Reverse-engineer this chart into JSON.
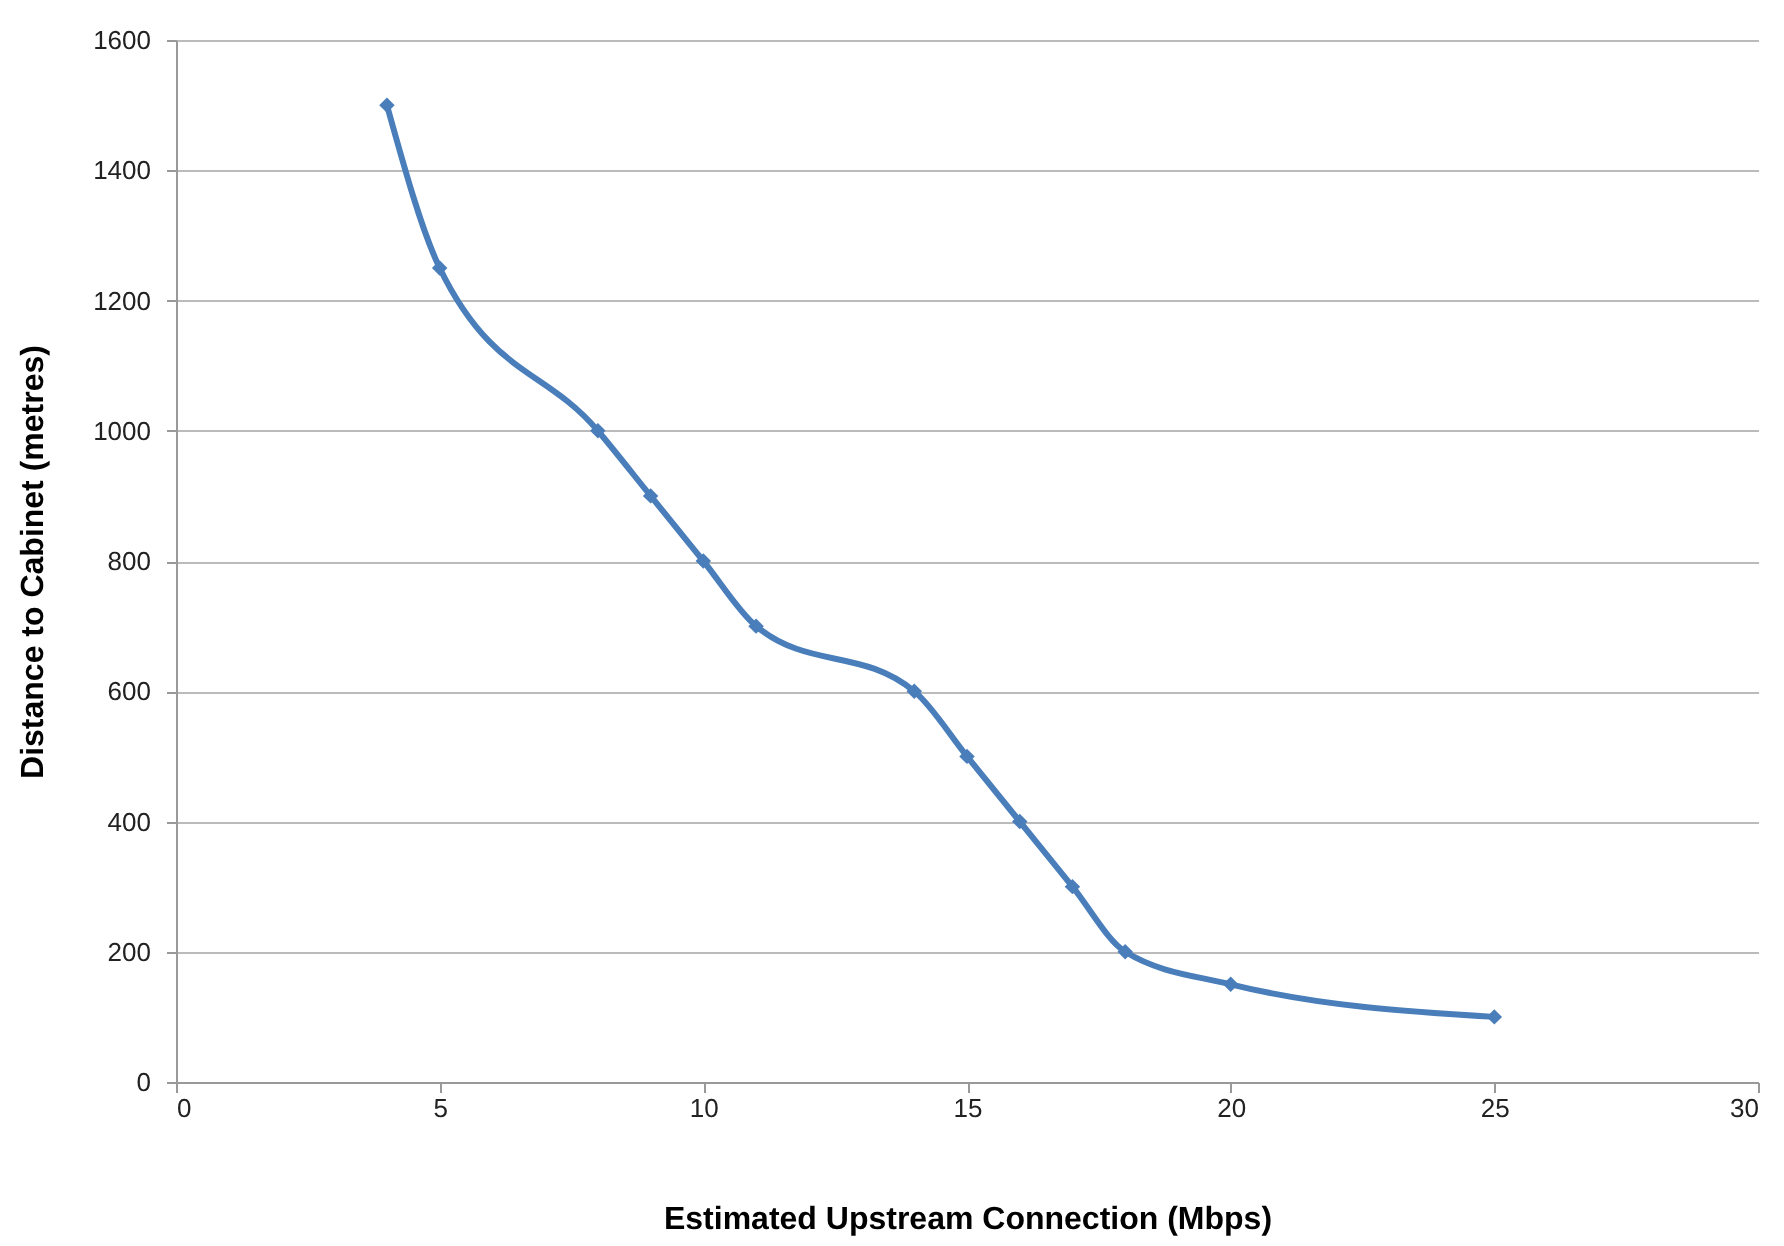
{
  "chart_data": {
    "type": "line",
    "xlabel": "Estimated Upstream Connection  (Mbps)",
    "ylabel": "Distance to Cabinet (metres)",
    "x": [
      4,
      5,
      8,
      9,
      10,
      11,
      14,
      15,
      16,
      17,
      18,
      20,
      25
    ],
    "series": [
      {
        "color": "#4a7ebb",
        "values": [
          1500,
          1250,
          1000,
          900,
          800,
          700,
          600,
          500,
          400,
          300,
          200,
          150,
          100
        ]
      }
    ],
    "xlim": [
      0,
      30
    ],
    "xticks": [
      0,
      5,
      10,
      15,
      20,
      25,
      30
    ],
    "ylim": [
      0,
      1600
    ],
    "yticks": [
      0,
      200,
      400,
      600,
      800,
      1000,
      1200,
      1400,
      1600
    ],
    "grid": "y",
    "marker": "diamond",
    "line_style": "solid"
  }
}
